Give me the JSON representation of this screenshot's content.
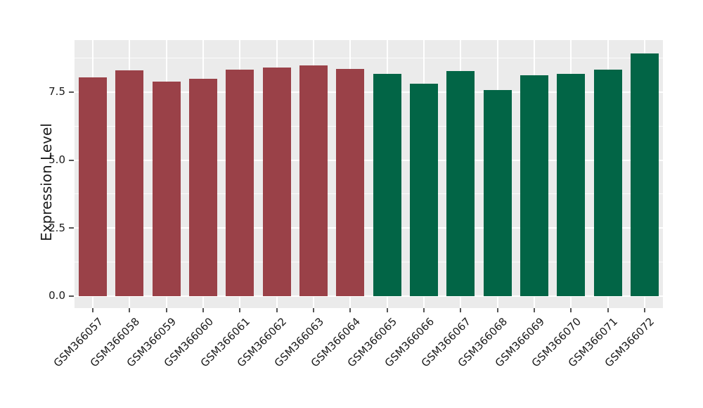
{
  "chart_data": {
    "type": "bar",
    "title": "",
    "xlabel": "",
    "ylabel": "Expression Level",
    "categories": [
      "GSM366057",
      "GSM366058",
      "GSM366059",
      "GSM366060",
      "GSM366061",
      "GSM366062",
      "GSM366063",
      "GSM366064",
      "GSM366065",
      "GSM366066",
      "GSM366067",
      "GSM366068",
      "GSM366069",
      "GSM366070",
      "GSM366071",
      "GSM366072"
    ],
    "values": [
      8.05,
      8.3,
      7.88,
      7.99,
      8.33,
      8.41,
      8.47,
      8.36,
      8.18,
      7.8,
      8.28,
      7.57,
      8.12,
      8.17,
      8.33,
      8.93
    ],
    "bar_colors": [
      "#9A4148",
      "#9A4148",
      "#9A4148",
      "#9A4148",
      "#9A4148",
      "#9A4148",
      "#9A4148",
      "#9A4148",
      "#026546",
      "#026546",
      "#026546",
      "#026546",
      "#026546",
      "#026546",
      "#026546",
      "#026546"
    ],
    "group_colors": {
      "left_group": "#9A4148",
      "right_group": "#026546"
    },
    "ytick_values": [
      0.0,
      2.5,
      5.0,
      7.5
    ],
    "ytick_labels": [
      "0.0",
      "2.5",
      "5.0",
      "7.5"
    ],
    "minor_ytick_values": [
      1.25,
      3.75,
      6.25,
      8.75
    ],
    "ylim": [
      -0.44,
      9.41
    ],
    "grid": true,
    "legend": false,
    "panel_bg": "#EBEBEB",
    "grid_color": "#FFFFFF"
  }
}
